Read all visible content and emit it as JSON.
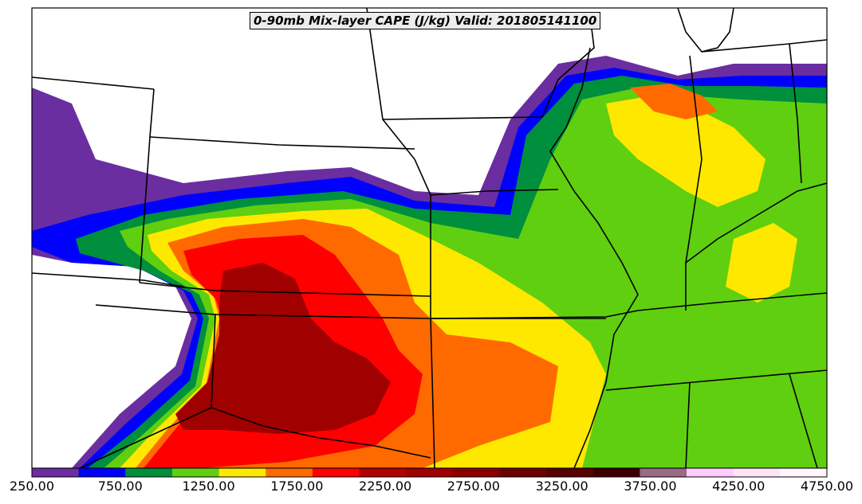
{
  "title": "0-90mb Mix-layer CAPE (J/kg) Valid: 201805141100",
  "colorbar": {
    "colors": [
      "#6a2ea1",
      "#0000ff",
      "#008f3c",
      "#5fcf10",
      "#ffe800",
      "#ff6a00",
      "#ff0000",
      "#b30000",
      "#a00000",
      "#8a0000",
      "#6d0000",
      "#5a0000",
      "#3d0000",
      "#9a6a86",
      "#ffccff",
      "#ffe4f4",
      "#fff5fa"
    ],
    "labels": [
      "250.00",
      "750.00",
      "1250.00",
      "1750.00",
      "2250.00",
      "2750.00",
      "3250.00",
      "3750.00",
      "4250.00",
      "4750.00"
    ]
  },
  "palette": {
    "purple": "#6a2ea1",
    "blue": "#0000ff",
    "dark_green": "#008f3c",
    "light_green": "#5fcf10",
    "yellow": "#ffe800",
    "orange": "#ff6a00",
    "red": "#ff0000",
    "dark_red": "#a00000"
  }
}
